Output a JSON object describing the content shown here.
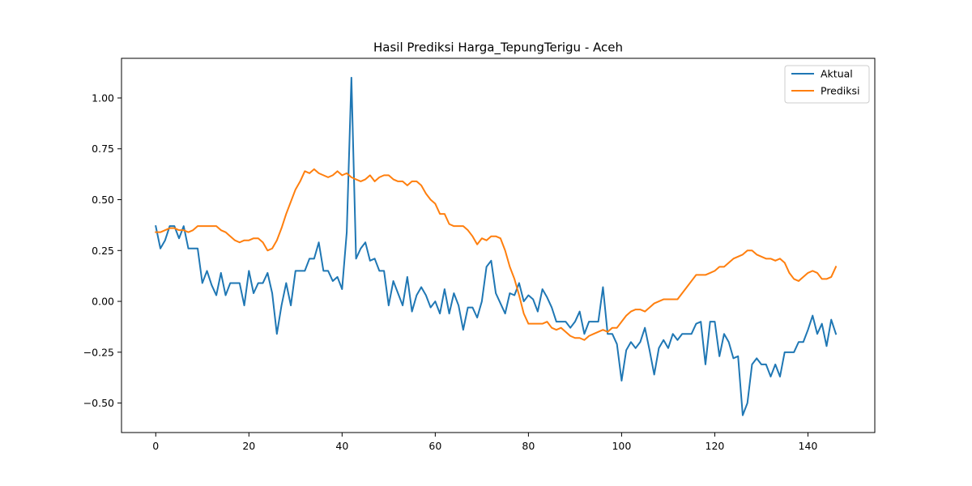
{
  "chart_data": {
    "type": "line",
    "title": "Hasil Prediksi Harga_TepungTerigu - Aceh",
    "xlabel": "",
    "ylabel": "",
    "xlim": [
      -7.35,
      154.35
    ],
    "ylim": [
      -0.645,
      1.195
    ],
    "xticks": [
      0,
      20,
      40,
      60,
      80,
      100,
      120,
      140
    ],
    "yticks": [
      -0.5,
      -0.25,
      0.0,
      0.25,
      0.5,
      0.75,
      1.0
    ],
    "ytick_labels": [
      "−0.50",
      "−0.25",
      "0.00",
      "0.25",
      "0.50",
      "0.75",
      "1.00"
    ],
    "grid": false,
    "legend_position": "upper right",
    "series": [
      {
        "name": "Aktual",
        "color": "#1f77b4",
        "values": [
          0.37,
          0.26,
          0.3,
          0.37,
          0.37,
          0.31,
          0.37,
          0.26,
          0.26,
          0.26,
          0.09,
          0.15,
          0.08,
          0.03,
          0.14,
          0.03,
          0.09,
          0.09,
          0.09,
          -0.02,
          0.15,
          0.04,
          0.09,
          0.09,
          0.14,
          0.04,
          -0.16,
          -0.02,
          0.09,
          -0.02,
          0.15,
          0.15,
          0.15,
          0.21,
          0.21,
          0.29,
          0.15,
          0.15,
          0.1,
          0.12,
          0.06,
          0.34,
          1.1,
          0.21,
          0.26,
          0.29,
          0.2,
          0.21,
          0.15,
          0.15,
          -0.02,
          0.1,
          0.04,
          -0.02,
          0.12,
          -0.05,
          0.03,
          0.07,
          0.03,
          -0.03,
          0.0,
          -0.06,
          0.06,
          -0.06,
          0.04,
          -0.02,
          -0.14,
          -0.03,
          -0.03,
          -0.08,
          0.0,
          0.17,
          0.2,
          0.04,
          -0.01,
          -0.06,
          0.04,
          0.03,
          0.09,
          0.0,
          0.03,
          0.01,
          -0.05,
          0.06,
          0.02,
          -0.03,
          -0.1,
          -0.1,
          -0.1,
          -0.13,
          -0.1,
          -0.05,
          -0.16,
          -0.1,
          -0.1,
          -0.1,
          0.07,
          -0.16,
          -0.16,
          -0.21,
          -0.39,
          -0.24,
          -0.2,
          -0.23,
          -0.2,
          -0.13,
          -0.24,
          -0.36,
          -0.23,
          -0.19,
          -0.23,
          -0.16,
          -0.19,
          -0.16,
          -0.16,
          -0.16,
          -0.11,
          -0.1,
          -0.31,
          -0.1,
          -0.1,
          -0.27,
          -0.16,
          -0.2,
          -0.28,
          -0.27,
          -0.56,
          -0.5,
          -0.31,
          -0.28,
          -0.31,
          -0.31,
          -0.37,
          -0.31,
          -0.37,
          -0.25,
          -0.25,
          -0.25,
          -0.2,
          -0.2,
          -0.14,
          -0.07,
          -0.16,
          -0.11,
          -0.22,
          -0.09,
          -0.16
        ]
      },
      {
        "name": "Prediksi",
        "color": "#ff7f0e",
        "values": [
          0.34,
          0.34,
          0.35,
          0.36,
          0.36,
          0.35,
          0.35,
          0.34,
          0.35,
          0.37,
          0.37,
          0.37,
          0.37,
          0.37,
          0.35,
          0.34,
          0.32,
          0.3,
          0.29,
          0.3,
          0.3,
          0.31,
          0.31,
          0.29,
          0.25,
          0.26,
          0.3,
          0.36,
          0.43,
          0.49,
          0.55,
          0.59,
          0.64,
          0.63,
          0.65,
          0.63,
          0.62,
          0.61,
          0.62,
          0.64,
          0.62,
          0.63,
          0.61,
          0.6,
          0.59,
          0.6,
          0.62,
          0.59,
          0.61,
          0.62,
          0.62,
          0.6,
          0.59,
          0.59,
          0.57,
          0.59,
          0.59,
          0.57,
          0.53,
          0.5,
          0.48,
          0.43,
          0.43,
          0.38,
          0.37,
          0.37,
          0.37,
          0.35,
          0.32,
          0.28,
          0.31,
          0.3,
          0.32,
          0.32,
          0.31,
          0.25,
          0.17,
          0.11,
          0.03,
          -0.06,
          -0.11,
          -0.11,
          -0.11,
          -0.11,
          -0.1,
          -0.13,
          -0.14,
          -0.13,
          -0.15,
          -0.17,
          -0.18,
          -0.18,
          -0.19,
          -0.17,
          -0.16,
          -0.15,
          -0.14,
          -0.15,
          -0.13,
          -0.13,
          -0.1,
          -0.07,
          -0.05,
          -0.04,
          -0.04,
          -0.05,
          -0.03,
          -0.01,
          0.0,
          0.01,
          0.01,
          0.01,
          0.01,
          0.04,
          0.07,
          0.1,
          0.13,
          0.13,
          0.13,
          0.14,
          0.15,
          0.17,
          0.17,
          0.19,
          0.21,
          0.22,
          0.23,
          0.25,
          0.25,
          0.23,
          0.22,
          0.21,
          0.21,
          0.2,
          0.21,
          0.19,
          0.14,
          0.11,
          0.1,
          0.12,
          0.14,
          0.15,
          0.14,
          0.11,
          0.11,
          0.12,
          0.17
        ]
      }
    ]
  }
}
